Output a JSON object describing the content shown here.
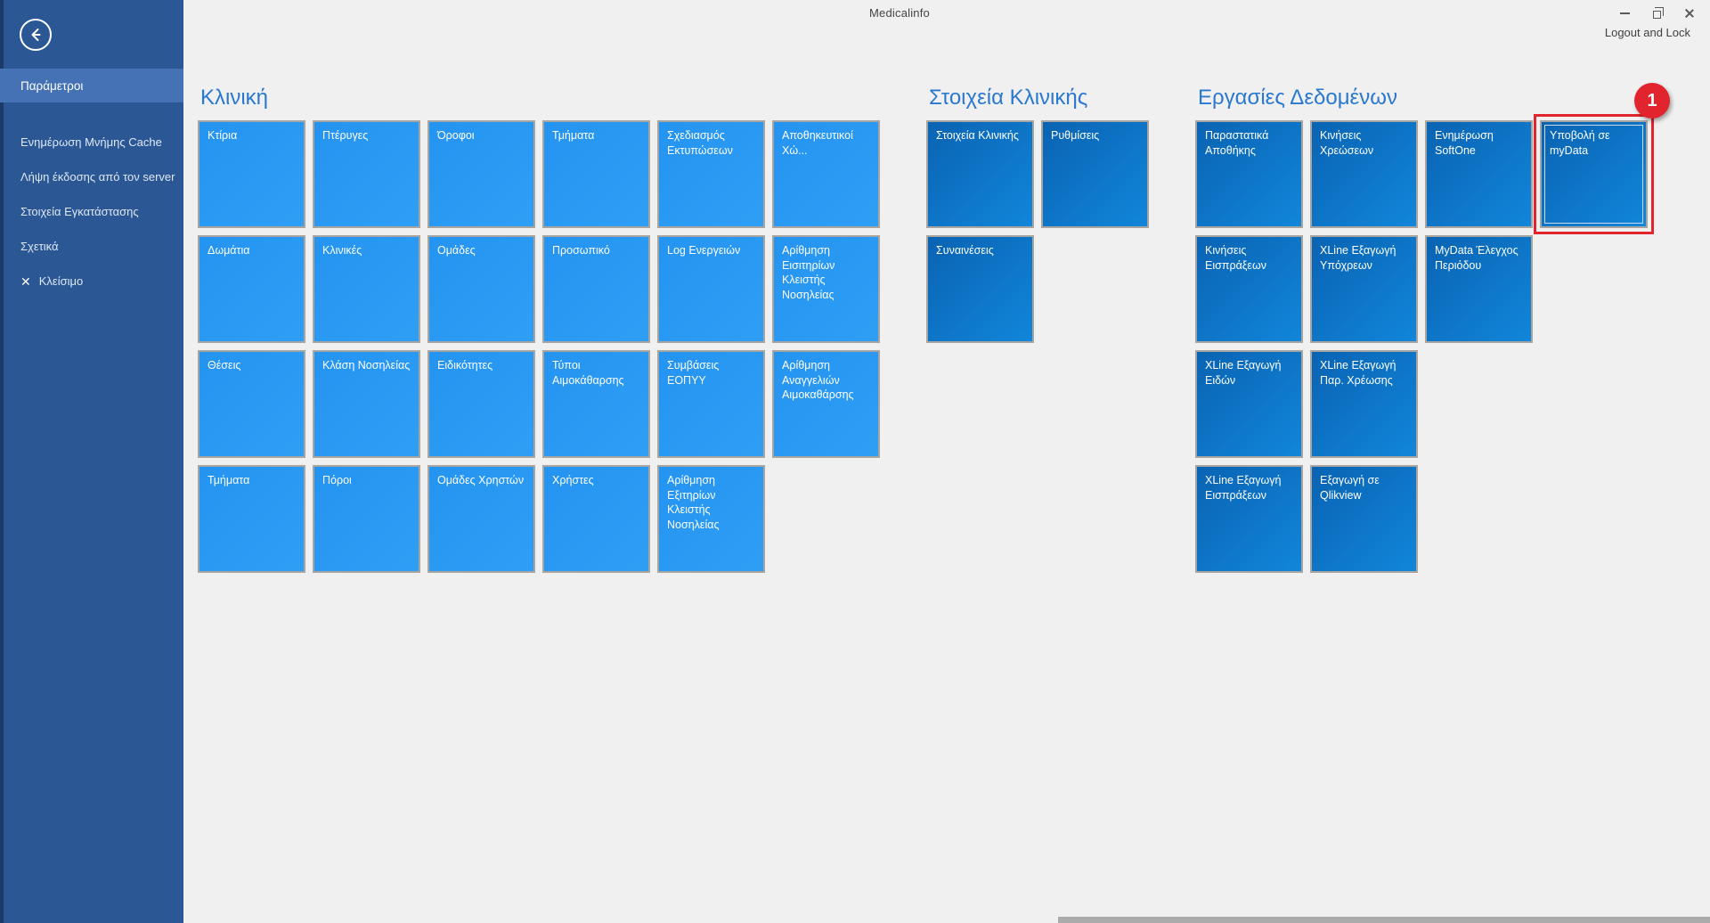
{
  "window": {
    "title": "Medicalinfo",
    "logout_label": "Logout and Lock"
  },
  "sidebar": {
    "selected_label": "Παράμετροι",
    "items": [
      {
        "label": "Ενημέρωση Μνήμης Cache"
      },
      {
        "label": "Λήψη έκδοσης από τον server"
      },
      {
        "label": "Στοιχεία Εγκατάστασης"
      },
      {
        "label": "Σχετικά"
      },
      {
        "label": "Κλείσιμο",
        "icon": "close"
      }
    ]
  },
  "groups": [
    {
      "title": "Κλινική",
      "style": "bright",
      "tiles": [
        {
          "label": "Κτίρια",
          "row": 1,
          "col": 1
        },
        {
          "label": "Πτέρυγες",
          "row": 1,
          "col": 2
        },
        {
          "label": "Όροφοι",
          "row": 1,
          "col": 3
        },
        {
          "label": "Τμήματα",
          "row": 1,
          "col": 4
        },
        {
          "label": "Σχεδιασμός Εκτυπώσεων",
          "row": 1,
          "col": 5
        },
        {
          "label": "Αποθηκευτικοί Χώ...",
          "row": 1,
          "col": 6
        },
        {
          "label": "Δωμάτια",
          "row": 2,
          "col": 1
        },
        {
          "label": "Κλινικές",
          "row": 2,
          "col": 2
        },
        {
          "label": "Ομάδες",
          "row": 2,
          "col": 3
        },
        {
          "label": "Προσωπικό",
          "row": 2,
          "col": 4
        },
        {
          "label": "Log Ενεργειών",
          "row": 2,
          "col": 5
        },
        {
          "label": "Αρίθμηση Εισιτηρίων Κλειστής Νοσηλείας",
          "row": 2,
          "col": 6
        },
        {
          "label": "Θέσεις",
          "row": 3,
          "col": 1
        },
        {
          "label": "Κλάση Νοσηλείας",
          "row": 3,
          "col": 2
        },
        {
          "label": "Ειδικότητες",
          "row": 3,
          "col": 3
        },
        {
          "label": "Τύποι Αιμοκάθαρσης",
          "row": 3,
          "col": 4
        },
        {
          "label": "Συμβάσεις ΕΟΠΥΥ",
          "row": 3,
          "col": 5
        },
        {
          "label": "Αρίθμηση Αναγγελιών Αιμοκαθάρσης",
          "row": 3,
          "col": 6
        },
        {
          "label": "Τμήματα",
          "row": 4,
          "col": 1
        },
        {
          "label": "Πόροι",
          "row": 4,
          "col": 2
        },
        {
          "label": "Ομάδες Χρηστών",
          "row": 4,
          "col": 3
        },
        {
          "label": "Χρήστες",
          "row": 4,
          "col": 4
        },
        {
          "label": "Αρίθμηση Εξιτηρίων Κλειστής Νοσηλείας",
          "row": 4,
          "col": 5
        }
      ]
    },
    {
      "title": "Στοιχεία Κλινικής",
      "style": "dark",
      "tiles": [
        {
          "label": "Στοιχεία Κλινικής",
          "row": 1,
          "col": 1
        },
        {
          "label": "Ρυθμίσεις",
          "row": 1,
          "col": 2
        },
        {
          "label": "Συναινέσεις",
          "row": 2,
          "col": 1
        }
      ]
    },
    {
      "title": "Εργασίες Δεδομένων",
      "style": "dark",
      "tiles": [
        {
          "label": "Παραστατικά Αποθήκης",
          "row": 1,
          "col": 1
        },
        {
          "label": "Κινήσεις Χρεώσεων",
          "row": 1,
          "col": 2
        },
        {
          "label": "Ενημέρωση SoftOne",
          "row": 1,
          "col": 3
        },
        {
          "label": "Υποβολή σε myData",
          "row": 1,
          "col": 4,
          "selected": true
        },
        {
          "label": "Κινήσεις Εισπράξεων",
          "row": 2,
          "col": 1
        },
        {
          "label": "XLine Εξαγωγή Υπόχρεων",
          "row": 2,
          "col": 2
        },
        {
          "label": "MyData Έλεγχος Περιόδου",
          "row": 2,
          "col": 3
        },
        {
          "label": "XLine Εξαγωγή Ειδών",
          "row": 3,
          "col": 1
        },
        {
          "label": "XLine Εξαγωγή Παρ. Χρέωσης",
          "row": 3,
          "col": 2
        },
        {
          "label": "XLine Εξαγωγή Εισπράξεων",
          "row": 4,
          "col": 1
        },
        {
          "label": "Εξαγωγή σε Qlikview",
          "row": 4,
          "col": 2
        }
      ]
    }
  ],
  "annotation": {
    "badge_label": "1"
  },
  "colors": {
    "sidebar": "#2b5795",
    "sidebar_selected": "#4472b4",
    "tile_bright": "#2494f1",
    "tile_dark_start": "#0a63b3",
    "tile_dark_end": "#1186da",
    "group_title": "#2a78d0",
    "annotation_red": "#e1242d",
    "background": "#f0f0f0"
  }
}
